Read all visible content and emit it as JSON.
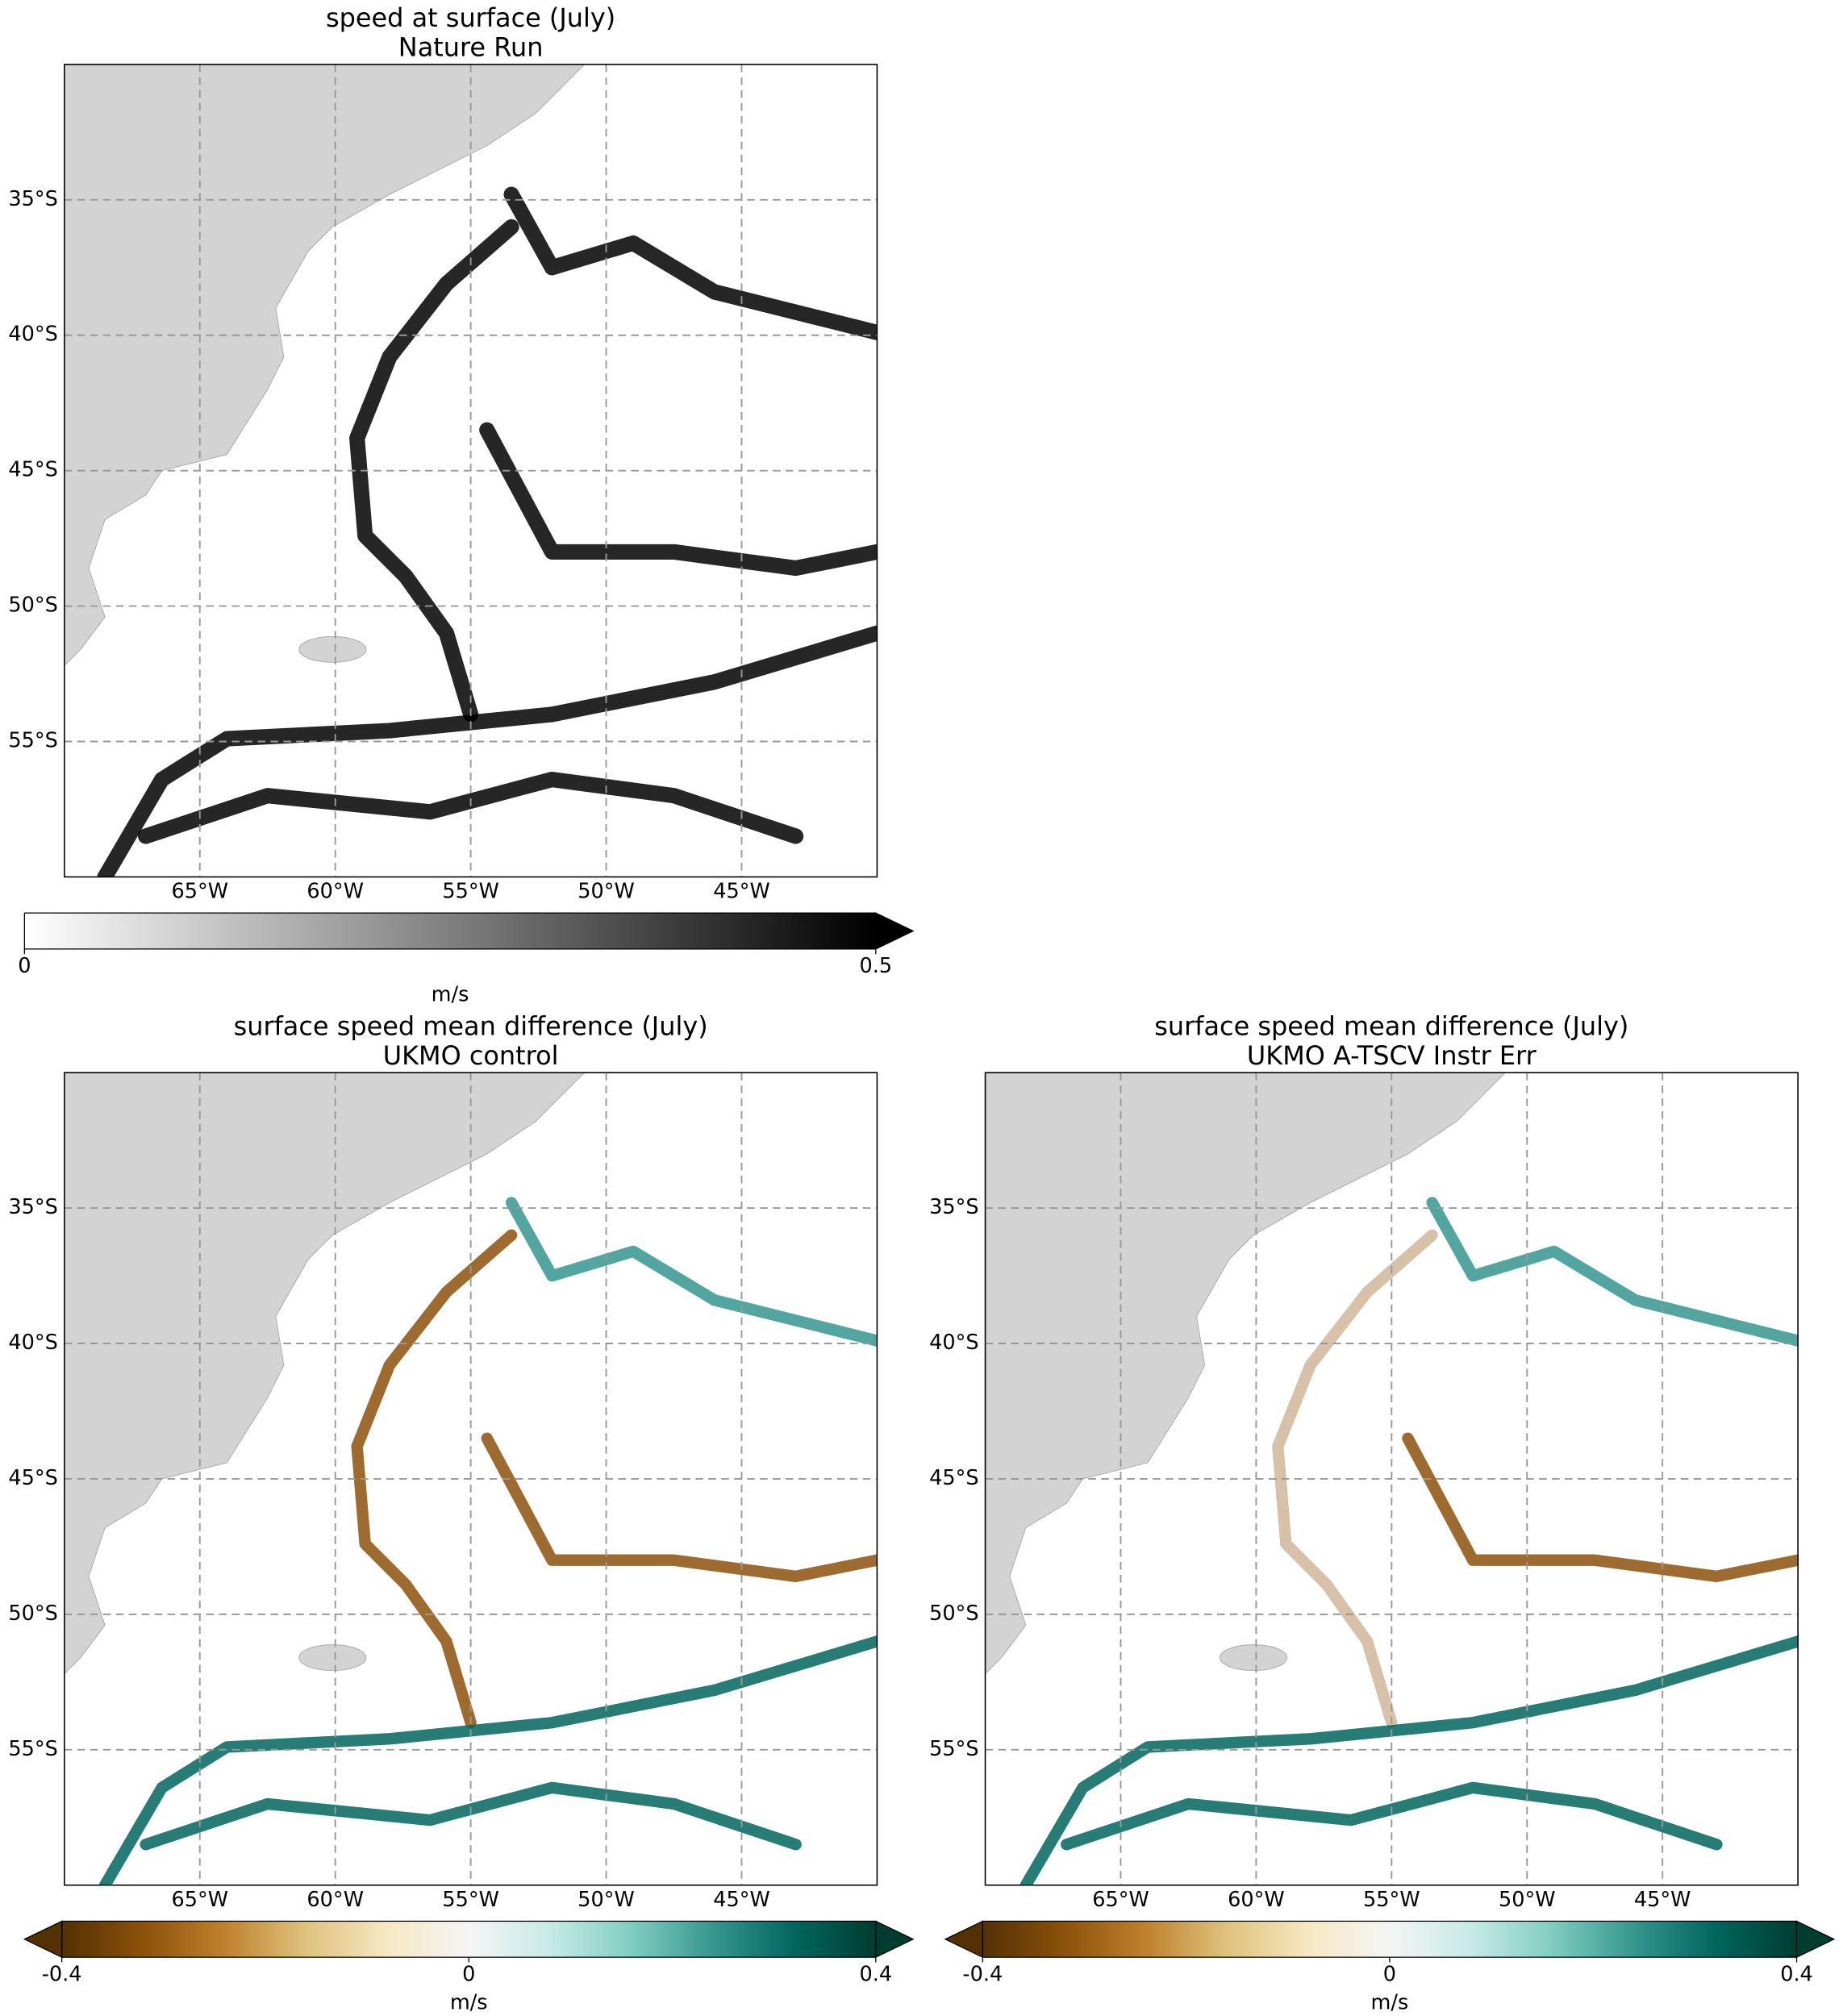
{
  "chart_data": [
    {
      "type": "map",
      "title": "speed at surface (July)",
      "subtitle": "Nature Run",
      "xlim": [
        -70,
        -40
      ],
      "ylim": [
        -60,
        -30
      ],
      "xticks": [
        {
          "value": -65,
          "label": "65°W"
        },
        {
          "value": -60,
          "label": "60°W"
        },
        {
          "value": -55,
          "label": "55°W"
        },
        {
          "value": -50,
          "label": "50°W"
        },
        {
          "value": -45,
          "label": "45°W"
        }
      ],
      "yticks": [
        {
          "value": -35,
          "label": "35°S"
        },
        {
          "value": -40,
          "label": "40°S"
        },
        {
          "value": -45,
          "label": "45°S"
        },
        {
          "value": -50,
          "label": "50°S"
        },
        {
          "value": -55,
          "label": "55°S"
        }
      ],
      "grid": true,
      "land_color": "#d3d3d3",
      "colorbar": {
        "colors": [
          "#ffffff",
          "#000000"
        ],
        "lim": [
          0,
          0.5
        ],
        "ticks": [
          0,
          0.5
        ],
        "label": "m/s",
        "extend": "max"
      }
    },
    {
      "type": "map",
      "title": "surface speed mean difference (July)",
      "subtitle": "UKMO control",
      "xlim": [
        -70,
        -40
      ],
      "ylim": [
        -60,
        -30
      ],
      "xticks": [
        {
          "value": -65,
          "label": "65°W"
        },
        {
          "value": -60,
          "label": "60°W"
        },
        {
          "value": -55,
          "label": "55°W"
        },
        {
          "value": -50,
          "label": "50°W"
        },
        {
          "value": -45,
          "label": "45°W"
        }
      ],
      "yticks": [
        {
          "value": -35,
          "label": "35°S"
        },
        {
          "value": -40,
          "label": "40°S"
        },
        {
          "value": -45,
          "label": "45°S"
        },
        {
          "value": -50,
          "label": "50°S"
        },
        {
          "value": -55,
          "label": "55°S"
        }
      ],
      "grid": true,
      "land_color": "#d3d3d3",
      "colorbar": {
        "colors": [
          "#543005",
          "#8c510a",
          "#bf812d",
          "#dfc27d",
          "#f6e8c3",
          "#f5f5f5",
          "#c7eae5",
          "#80cdc1",
          "#35978f",
          "#01665e",
          "#003c30"
        ],
        "lim": [
          -0.4,
          0.4
        ],
        "ticks": [
          -0.4,
          0,
          0.4
        ],
        "label": "m/s",
        "extend": "both"
      }
    },
    {
      "type": "map",
      "title": "surface speed mean difference (July)",
      "subtitle": "UKMO A-TSCV Instr Err",
      "xlim": [
        -70,
        -40
      ],
      "ylim": [
        -60,
        -30
      ],
      "xticks": [
        {
          "value": -65,
          "label": "65°W"
        },
        {
          "value": -60,
          "label": "60°W"
        },
        {
          "value": -55,
          "label": "55°W"
        },
        {
          "value": -50,
          "label": "50°W"
        },
        {
          "value": -45,
          "label": "45°W"
        }
      ],
      "yticks": [
        {
          "value": -35,
          "label": "35°S"
        },
        {
          "value": -40,
          "label": "40°S"
        },
        {
          "value": -45,
          "label": "45°S"
        },
        {
          "value": -50,
          "label": "50°S"
        },
        {
          "value": -55,
          "label": "55°S"
        }
      ],
      "grid": true,
      "land_color": "#d3d3d3",
      "colorbar": {
        "colors": [
          "#543005",
          "#8c510a",
          "#bf812d",
          "#dfc27d",
          "#f6e8c3",
          "#f5f5f5",
          "#c7eae5",
          "#80cdc1",
          "#35978f",
          "#01665e",
          "#003c30"
        ],
        "lim": [
          -0.4,
          0.4
        ],
        "ticks": [
          -0.4,
          0,
          0.4
        ],
        "label": "m/s",
        "extend": "both"
      }
    }
  ]
}
